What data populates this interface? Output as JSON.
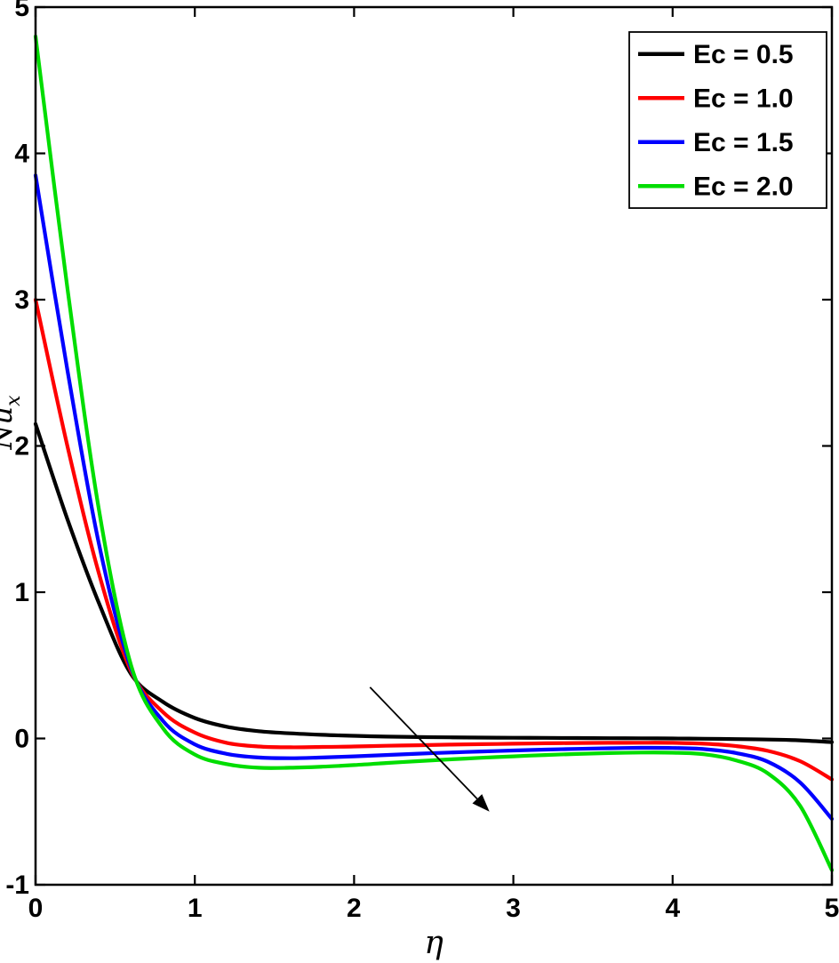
{
  "figure": {
    "background": "#ffffff",
    "frame_color": "#000000"
  },
  "chart_data": {
    "type": "line",
    "title": "",
    "xlabel": "η",
    "ylabel": "Nu_x",
    "ylabel_main": "Nu",
    "ylabel_sub": "x",
    "xlim": [
      0,
      5
    ],
    "ylim": [
      -1,
      5
    ],
    "xticks": [
      0,
      1,
      2,
      3,
      4,
      5
    ],
    "yticks": [
      -1,
      0,
      1,
      2,
      3,
      4,
      5
    ],
    "grid": false,
    "legend_position": "top-right",
    "x": [
      0,
      0.2,
      0.4,
      0.6,
      0.8,
      1.0,
      1.2,
      1.4,
      1.6,
      1.8,
      2.0,
      2.2,
      2.4,
      2.6,
      2.8,
      3.0,
      3.2,
      3.4,
      3.6,
      3.8,
      4.0,
      4.2,
      4.4,
      4.6,
      4.8,
      5.0
    ],
    "series": [
      {
        "name": "Ec = 0.5",
        "color": "#000000",
        "values": [
          2.15,
          1.5,
          0.92,
          0.44,
          0.25,
          0.14,
          0.08,
          0.05,
          0.035,
          0.025,
          0.018,
          0.013,
          0.01,
          0.008,
          0.006,
          0.005,
          0.004,
          0.003,
          0.002,
          0.001,
          0.0,
          -0.002,
          -0.004,
          -0.007,
          -0.013,
          -0.025
        ]
      },
      {
        "name": "Ec = 1.0",
        "color": "#ff0000",
        "values": [
          3.0,
          2.0,
          1.12,
          0.46,
          0.18,
          0.04,
          -0.03,
          -0.055,
          -0.06,
          -0.058,
          -0.055,
          -0.05,
          -0.046,
          -0.042,
          -0.039,
          -0.036,
          -0.033,
          -0.031,
          -0.03,
          -0.029,
          -0.03,
          -0.036,
          -0.052,
          -0.085,
          -0.155,
          -0.28
        ]
      },
      {
        "name": "Ec = 1.5",
        "color": "#0000ff",
        "values": [
          3.85,
          2.52,
          1.32,
          0.48,
          0.12,
          -0.04,
          -0.105,
          -0.13,
          -0.135,
          -0.13,
          -0.122,
          -0.113,
          -0.104,
          -0.096,
          -0.089,
          -0.082,
          -0.076,
          -0.071,
          -0.067,
          -0.064,
          -0.065,
          -0.073,
          -0.1,
          -0.16,
          -0.3,
          -0.55
        ]
      },
      {
        "name": "Ec = 2.0",
        "color": "#00dd00",
        "values": [
          4.8,
          3.08,
          1.55,
          0.5,
          0.07,
          -0.11,
          -0.175,
          -0.2,
          -0.2,
          -0.193,
          -0.182,
          -0.168,
          -0.155,
          -0.143,
          -0.132,
          -0.122,
          -0.113,
          -0.106,
          -0.1,
          -0.096,
          -0.097,
          -0.108,
          -0.15,
          -0.24,
          -0.46,
          -0.9
        ]
      }
    ],
    "annotations": [
      {
        "type": "arrow",
        "from": [
          2.1,
          0.35
        ],
        "to": [
          2.85,
          -0.5
        ],
        "color": "#000000"
      }
    ]
  }
}
